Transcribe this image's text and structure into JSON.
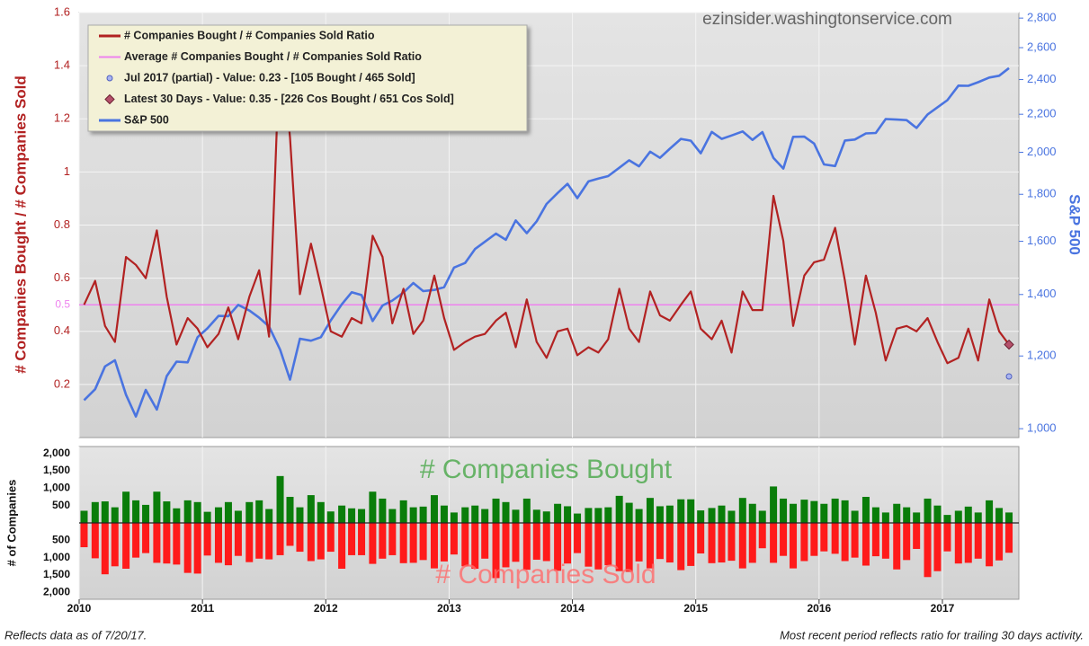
{
  "footer_left": "Reflects data as of 7/20/17.",
  "footer_right": "Most recent period reflects ratio for trailing 30 days activity.",
  "chart_data": [
    {
      "type": "line",
      "watermark": "ezinsider.washingtonservice.com",
      "ylabel": "# Companies Bought / # Companies Sold",
      "y2label": "S&P 500",
      "x": [
        2010.04,
        2010.13,
        2010.21,
        2010.29,
        2010.38,
        2010.46,
        2010.54,
        2010.63,
        2010.71,
        2010.79,
        2010.88,
        2010.96,
        2011.04,
        2011.13,
        2011.21,
        2011.29,
        2011.38,
        2011.46,
        2011.54,
        2011.63,
        2011.71,
        2011.79,
        2011.88,
        2011.96,
        2012.04,
        2012.13,
        2012.21,
        2012.29,
        2012.38,
        2012.46,
        2012.54,
        2012.63,
        2012.71,
        2012.79,
        2012.88,
        2012.96,
        2013.04,
        2013.13,
        2013.21,
        2013.29,
        2013.38,
        2013.46,
        2013.54,
        2013.63,
        2013.71,
        2013.79,
        2013.88,
        2013.96,
        2014.04,
        2014.13,
        2014.21,
        2014.29,
        2014.38,
        2014.46,
        2014.54,
        2014.63,
        2014.71,
        2014.79,
        2014.88,
        2014.96,
        2015.04,
        2015.13,
        2015.21,
        2015.29,
        2015.38,
        2015.46,
        2015.54,
        2015.63,
        2015.71,
        2015.79,
        2015.88,
        2015.96,
        2016.04,
        2016.13,
        2016.21,
        2016.29,
        2016.38,
        2016.46,
        2016.54,
        2016.63,
        2016.71,
        2016.79,
        2016.88,
        2016.96,
        2017.04,
        2017.13,
        2017.21,
        2017.29,
        2017.38,
        2017.46,
        2017.54
      ],
      "xlim": [
        2010,
        2017.62
      ],
      "xticks": [
        2010,
        2011,
        2012,
        2013,
        2014,
        2015,
        2016,
        2017
      ],
      "ylim": [
        0,
        1.6
      ],
      "yticks": [
        0.2,
        0.4,
        0.6,
        0.8,
        1.0,
        1.2,
        1.4,
        1.6
      ],
      "y2lim": [
        978,
        2839
      ],
      "y2scale": "log",
      "y2ticks": [
        {
          "value": 1000,
          "label": "1,000"
        },
        {
          "value": 1200,
          "label": "1,200"
        },
        {
          "value": 1400,
          "label": "1,400"
        },
        {
          "value": 1600,
          "label": "1,600"
        },
        {
          "value": 1800,
          "label": "1,800"
        },
        {
          "value": 2000,
          "label": "2,000"
        },
        {
          "value": 2200,
          "label": "2,200"
        },
        {
          "value": 2400,
          "label": "2,400"
        },
        {
          "value": 2600,
          "label": "2,600"
        },
        {
          "value": 2800,
          "label": "2,800"
        }
      ],
      "grid": true,
      "legend": "upper left",
      "series": [
        {
          "name": "# Companies Bought / # Companies Sold Ratio",
          "color": "#b22222",
          "values": [
            0.5,
            0.59,
            0.42,
            0.36,
            0.68,
            0.65,
            0.6,
            0.78,
            0.53,
            0.35,
            0.45,
            0.41,
            0.34,
            0.39,
            0.49,
            0.37,
            0.53,
            0.63,
            0.38,
            1.5,
            1.13,
            0.54,
            0.73,
            0.57,
            0.4,
            0.38,
            0.45,
            0.43,
            0.76,
            0.68,
            0.43,
            0.56,
            0.39,
            0.44,
            0.61,
            0.45,
            0.33,
            0.36,
            0.38,
            0.39,
            0.44,
            0.47,
            0.34,
            0.52,
            0.36,
            0.3,
            0.4,
            0.41,
            0.31,
            0.34,
            0.32,
            0.37,
            0.56,
            0.41,
            0.36,
            0.55,
            0.46,
            0.44,
            0.5,
            0.55,
            0.41,
            0.37,
            0.44,
            0.32,
            0.55,
            0.48,
            0.48,
            0.91,
            0.74,
            0.42,
            0.61,
            0.66,
            0.67,
            0.79,
            0.59,
            0.35,
            0.61,
            0.47,
            0.29,
            0.41,
            0.42,
            0.4,
            0.45,
            0.36,
            0.28,
            0.3,
            0.41,
            0.29,
            0.52,
            0.4,
            0.35
          ]
        },
        {
          "name": "S&P 500",
          "color": "#4a74e0",
          "axis": "y2",
          "values": [
            1074,
            1104,
            1169,
            1187,
            1089,
            1031,
            1102,
            1049,
            1141,
            1183,
            1181,
            1258,
            1286,
            1327,
            1326,
            1364,
            1345,
            1321,
            1292,
            1219,
            1131,
            1253,
            1247,
            1258,
            1312,
            1366,
            1408,
            1398,
            1310,
            1362,
            1379,
            1407,
            1441,
            1412,
            1416,
            1426,
            1498,
            1515,
            1569,
            1598,
            1631,
            1606,
            1686,
            1633,
            1682,
            1757,
            1806,
            1848,
            1783,
            1859,
            1872,
            1884,
            1924,
            1960,
            1931,
            2003,
            1972,
            2018,
            2068,
            2059,
            1995,
            2105,
            2068,
            2086,
            2107,
            2063,
            2104,
            1972,
            1920,
            2079,
            2080,
            2044,
            1940,
            1932,
            2060,
            2065,
            2097,
            2099,
            2174,
            2171,
            2168,
            2126,
            2199,
            2239,
            2279,
            2364,
            2363,
            2384,
            2412,
            2423,
            2470
          ]
        }
      ],
      "average": {
        "name": "Average # Companies Bought / # Companies Sold Ratio",
        "value": 0.5,
        "color": "#ee82ee"
      },
      "points": [
        {
          "name": "Jul 2017 (partial) - Value: 0.23 - [105 Bought / 465 Sold]",
          "x": 2017.54,
          "value": 0.23,
          "marker": "circle",
          "color": "#a9b4f0"
        },
        {
          "name": "Latest 30 Days - Value: 0.35 - [226 Cos Bought / 651 Cos Sold]",
          "x": 2017.54,
          "value": 0.35,
          "marker": "diamond",
          "color": "#b5506b"
        }
      ]
    },
    {
      "type": "bar",
      "ylabel": "# of Companies",
      "x": [
        2010.04,
        2010.13,
        2010.21,
        2010.29,
        2010.38,
        2010.46,
        2010.54,
        2010.63,
        2010.71,
        2010.79,
        2010.88,
        2010.96,
        2011.04,
        2011.13,
        2011.21,
        2011.29,
        2011.38,
        2011.46,
        2011.54,
        2011.63,
        2011.71,
        2011.79,
        2011.88,
        2011.96,
        2012.04,
        2012.13,
        2012.21,
        2012.29,
        2012.38,
        2012.46,
        2012.54,
        2012.63,
        2012.71,
        2012.79,
        2012.88,
        2012.96,
        2013.04,
        2013.13,
        2013.21,
        2013.29,
        2013.38,
        2013.46,
        2013.54,
        2013.63,
        2013.71,
        2013.79,
        2013.88,
        2013.96,
        2014.04,
        2014.13,
        2014.21,
        2014.29,
        2014.38,
        2014.46,
        2014.54,
        2014.63,
        2014.71,
        2014.79,
        2014.88,
        2014.96,
        2015.04,
        2015.13,
        2015.21,
        2015.29,
        2015.38,
        2015.46,
        2015.54,
        2015.63,
        2015.71,
        2015.79,
        2015.88,
        2015.96,
        2016.04,
        2016.13,
        2016.21,
        2016.29,
        2016.38,
        2016.46,
        2016.54,
        2016.63,
        2016.71,
        2016.79,
        2016.88,
        2016.96,
        2017.04,
        2017.13,
        2017.21,
        2017.29,
        2017.38,
        2017.46,
        2017.54
      ],
      "xlim": [
        2010,
        2017.62
      ],
      "xticks": [
        2010,
        2011,
        2012,
        2013,
        2014,
        2015,
        2016,
        2017
      ],
      "ylim": [
        -2200,
        2200
      ],
      "yticks": [
        {
          "value": 2000,
          "label": "2,000"
        },
        {
          "value": 1500,
          "label": "1,500"
        },
        {
          "value": 1000,
          "label": "1,000"
        },
        500,
        {
          "value": -500,
          "label": "500"
        },
        {
          "value": -1000,
          "label": "1,000"
        },
        {
          "value": -1500,
          "label": "1,500"
        },
        {
          "value": -2000,
          "label": "2,000"
        }
      ],
      "grid": true,
      "series": [
        {
          "name": "# Companies Bought",
          "color": "#0a7d0a",
          "values": [
            350,
            600,
            620,
            450,
            900,
            650,
            520,
            900,
            620,
            420,
            650,
            600,
            320,
            450,
            600,
            350,
            600,
            650,
            400,
            1350,
            750,
            450,
            800,
            600,
            330,
            500,
            420,
            400,
            900,
            700,
            400,
            650,
            450,
            470,
            800,
            500,
            300,
            450,
            500,
            400,
            700,
            600,
            380,
            700,
            380,
            330,
            550,
            480,
            270,
            430,
            430,
            450,
            780,
            580,
            400,
            720,
            480,
            500,
            680,
            680,
            360,
            430,
            500,
            350,
            720,
            550,
            350,
            1050,
            700,
            550,
            670,
            630,
            550,
            700,
            650,
            350,
            750,
            450,
            300,
            550,
            450,
            300,
            700,
            500,
            230,
            350,
            470,
            300,
            650,
            430,
            300
          ]
        },
        {
          "name": "# Companies Sold",
          "color": "#ff1a1a",
          "values": [
            -700,
            -1020,
            -1480,
            -1250,
            -1320,
            -1000,
            -870,
            -1150,
            -1170,
            -1200,
            -1440,
            -1460,
            -940,
            -1150,
            -1220,
            -950,
            -1130,
            -1030,
            -1050,
            -930,
            -660,
            -830,
            -1100,
            -1050,
            -830,
            -1320,
            -930,
            -930,
            -1180,
            -1030,
            -930,
            -1160,
            -1150,
            -1070,
            -1310,
            -1110,
            -910,
            -1250,
            -1320,
            -1030,
            -1590,
            -1280,
            -1120,
            -1350,
            -1060,
            -1100,
            -1380,
            -1170,
            -870,
            -1260,
            -1340,
            -1220,
            -1390,
            -1410,
            -1110,
            -1310,
            -1040,
            -1140,
            -1360,
            -1240,
            -880,
            -1160,
            -1140,
            -1090,
            -1310,
            -1150,
            -730,
            -1150,
            -950,
            -1310,
            -1100,
            -950,
            -820,
            -890,
            -1100,
            -1000,
            -1230,
            -960,
            -1030,
            -1340,
            -1070,
            -750,
            -1560,
            -1390,
            -820,
            -1170,
            -1150,
            -1030,
            -1250,
            -1080,
            -860
          ]
        }
      ]
    }
  ]
}
